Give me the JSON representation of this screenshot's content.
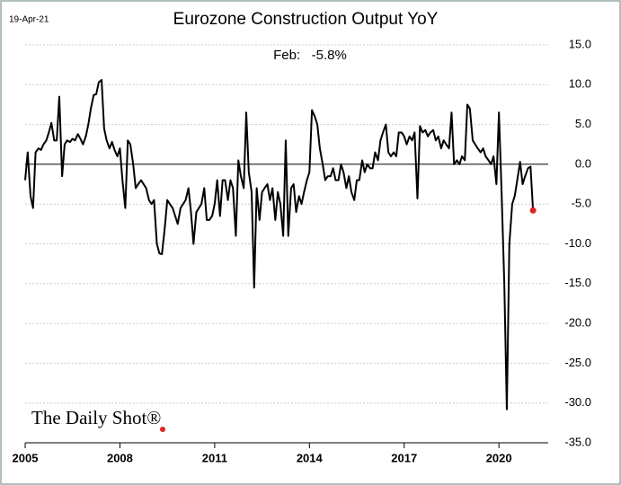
{
  "chart_data": {
    "type": "line",
    "title": "Eurozone Construction Output YoY",
    "date_note": "19-Apr-21",
    "annotation": "Feb:   -5.8%",
    "watermark": "The Daily Shot®",
    "color": "#000000",
    "marker_color": "#e02020",
    "grid": true,
    "xlim": [
      2005,
      2021.56
    ],
    "xticks": [
      2005,
      2008,
      2011,
      2014,
      2017,
      2020
    ],
    "ylim": [
      -35,
      15
    ],
    "yticks": [
      {
        "value": 15,
        "label": "15.0"
      },
      {
        "value": 10,
        "label": "10.0"
      },
      {
        "value": 5,
        "label": "5.0"
      },
      {
        "value": 0,
        "label": "0.0"
      },
      {
        "value": -5,
        "label": "-5.0"
      },
      {
        "value": -10,
        "label": "-10.0"
      },
      {
        "value": -15,
        "label": "-15.0"
      },
      {
        "value": -20,
        "label": "-20.0"
      },
      {
        "value": -25,
        "label": "-25.0"
      },
      {
        "value": -30,
        "label": "-30.0"
      },
      {
        "value": -35,
        "label": "-35.0"
      }
    ],
    "x": [
      2005,
      2005.08,
      2005.17,
      2005.25,
      2005.33,
      2005.42,
      2005.5,
      2005.58,
      2005.67,
      2005.75,
      2005.83,
      2005.92,
      2006,
      2006.08,
      2006.17,
      2006.25,
      2006.33,
      2006.42,
      2006.5,
      2006.58,
      2006.67,
      2006.75,
      2006.83,
      2006.92,
      2007,
      2007.08,
      2007.17,
      2007.25,
      2007.33,
      2007.42,
      2007.5,
      2007.58,
      2007.67,
      2007.75,
      2007.83,
      2007.92,
      2008,
      2008.08,
      2008.17,
      2008.25,
      2008.33,
      2008.42,
      2008.5,
      2008.58,
      2008.67,
      2008.75,
      2008.83,
      2008.92,
      2009,
      2009.08,
      2009.17,
      2009.25,
      2009.33,
      2009.42,
      2009.5,
      2009.58,
      2009.67,
      2009.75,
      2009.83,
      2009.92,
      2010,
      2010.08,
      2010.17,
      2010.25,
      2010.33,
      2010.42,
      2010.5,
      2010.58,
      2010.67,
      2010.75,
      2010.83,
      2010.92,
      2011,
      2011.08,
      2011.17,
      2011.25,
      2011.33,
      2011.42,
      2011.5,
      2011.58,
      2011.67,
      2011.75,
      2011.83,
      2011.92,
      2012,
      2012.08,
      2012.17,
      2012.25,
      2012.33,
      2012.42,
      2012.5,
      2012.58,
      2012.67,
      2012.75,
      2012.83,
      2012.92,
      2013,
      2013.08,
      2013.17,
      2013.25,
      2013.33,
      2013.42,
      2013.5,
      2013.58,
      2013.67,
      2013.75,
      2013.83,
      2013.92,
      2014,
      2014.08,
      2014.17,
      2014.25,
      2014.33,
      2014.42,
      2014.5,
      2014.58,
      2014.67,
      2014.75,
      2014.83,
      2014.92,
      2015,
      2015.08,
      2015.17,
      2015.25,
      2015.33,
      2015.42,
      2015.5,
      2015.58,
      2015.67,
      2015.75,
      2015.83,
      2015.92,
      2016,
      2016.08,
      2016.17,
      2016.25,
      2016.33,
      2016.42,
      2016.5,
      2016.58,
      2016.67,
      2016.75,
      2016.83,
      2016.92,
      2017,
      2017.08,
      2017.17,
      2017.25,
      2017.33,
      2017.42,
      2017.5,
      2017.58,
      2017.67,
      2017.75,
      2017.83,
      2017.92,
      2018,
      2018.08,
      2018.17,
      2018.25,
      2018.33,
      2018.42,
      2018.5,
      2018.58,
      2018.67,
      2018.75,
      2018.83,
      2018.92,
      2019,
      2019.08,
      2019.17,
      2019.25,
      2019.33,
      2019.42,
      2019.5,
      2019.58,
      2019.67,
      2019.75,
      2019.83,
      2019.92,
      2020,
      2020.08,
      2020.17,
      2020.25,
      2020.33,
      2020.42,
      2020.5,
      2020.58,
      2020.67,
      2020.75,
      2020.83,
      2020.92,
      2021,
      2021.08
    ],
    "values": [
      -2,
      1.5,
      -4,
      -5.5,
      1.5,
      2,
      1.8,
      2.5,
      3,
      4,
      5.2,
      3,
      3,
      8.5,
      -1.5,
      2.5,
      3,
      2.8,
      3.2,
      3,
      3.8,
      3.2,
      2.5,
      3.5,
      5,
      7,
      8.7,
      8.8,
      10.3,
      10.6,
      4.5,
      3,
      2,
      2.8,
      1.8,
      1,
      2,
      -2,
      -5.5,
      3,
      2.5,
      0,
      -3,
      -2.5,
      -2,
      -2.5,
      -3,
      -4.5,
      -5,
      -4.5,
      -10,
      -11.2,
      -11.3,
      -8,
      -4.5,
      -5,
      -5.5,
      -6.5,
      -7.5,
      -5.5,
      -5,
      -4.5,
      -3,
      -6,
      -10,
      -6,
      -5.5,
      -5,
      -3,
      -7,
      -7,
      -6.5,
      -5,
      -2,
      -6.5,
      -2,
      -2,
      -4.5,
      -2,
      -3,
      -9,
      0.5,
      -1.5,
      -3,
      6.5,
      -1,
      -3.5,
      -15.5,
      -3,
      -7,
      -3.5,
      -3,
      -2.5,
      -4.5,
      -3,
      -7,
      -3.5,
      -5,
      -9,
      3,
      -9,
      -3,
      -2.5,
      -6,
      -4,
      -5,
      -3.5,
      -2,
      -1,
      6.8,
      6,
      5,
      2,
      0,
      -2,
      -1.5,
      -1.5,
      -0.5,
      -2,
      -2,
      0,
      -1,
      -3,
      -1.5,
      -3.5,
      -4.5,
      -2,
      -2,
      0.5,
      -1,
      0,
      -0.5,
      -0.5,
      1.5,
      0.5,
      3,
      4,
      5,
      1.5,
      1,
      1.5,
      1,
      4,
      4,
      3.5,
      2.5,
      3.5,
      3,
      4,
      -4.3,
      4.8,
      4,
      4.3,
      3.5,
      4,
      4.3,
      3,
      3.5,
      2,
      3,
      2.5,
      2,
      6.5,
      0,
      0.5,
      0,
      1,
      0.5,
      7.5,
      7,
      3,
      2.5,
      2,
      1.5,
      2,
      1,
      0.5,
      0,
      1,
      -2.5,
      6.5,
      -3,
      -15,
      -30.8,
      -10,
      -5,
      -4,
      -2,
      0.3,
      -2.5,
      -1.5,
      -0.5,
      -0.3,
      -5.8
    ]
  }
}
